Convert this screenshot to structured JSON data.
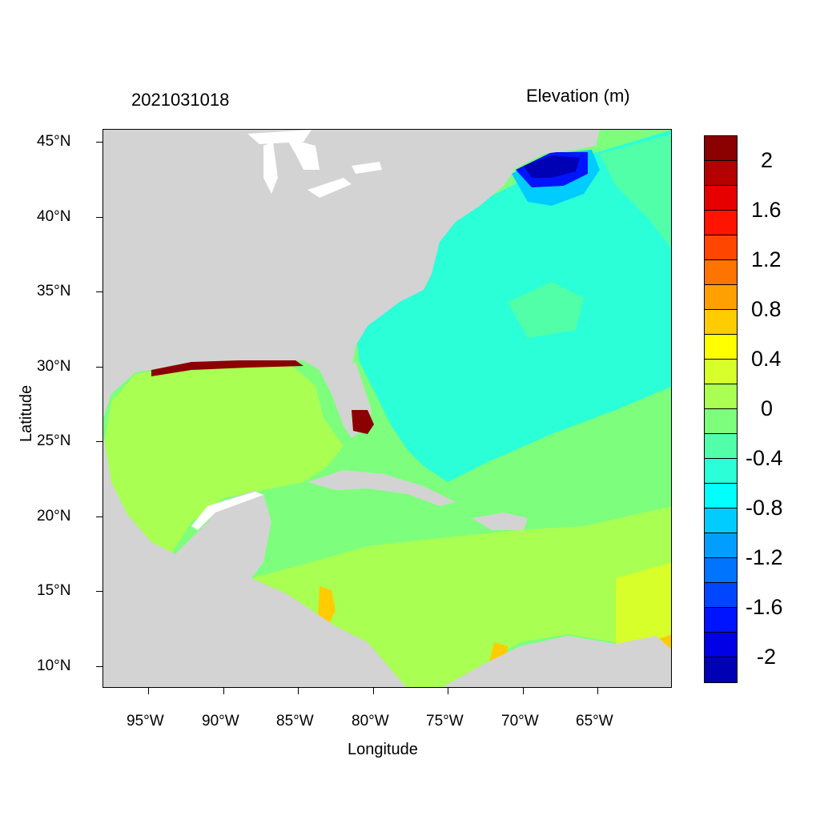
{
  "title_left": "2021031018",
  "title_right": "Elevation (m)",
  "xlabel": "Longitude",
  "ylabel": "Latitude",
  "x_ticks": [
    "95°W",
    "90°W",
    "85°W",
    "80°W",
    "75°W",
    "70°W",
    "65°W"
  ],
  "y_ticks": [
    "45°N",
    "40°N",
    "35°N",
    "30°N",
    "25°N",
    "20°N",
    "15°N",
    "10°N"
  ],
  "colorbar": {
    "colors_top_to_bottom": [
      "#8b0000",
      "#b50000",
      "#e60000",
      "#ff1400",
      "#ff4600",
      "#ff7300",
      "#ff9f00",
      "#ffcc00",
      "#ffff00",
      "#d7ff2a",
      "#a9ff52",
      "#7dff7d",
      "#52ffa9",
      "#2affd7",
      "#00ffff",
      "#00ccff",
      "#009fff",
      "#0073ff",
      "#0046ff",
      "#0014ff",
      "#0000e6",
      "#0000b5"
    ],
    "labels": [
      "2",
      "1.6",
      "1.2",
      "0.8",
      "0.4",
      "0",
      "-0.4",
      "-0.8",
      "-1.2",
      "-1.6",
      "-2"
    ]
  }
}
